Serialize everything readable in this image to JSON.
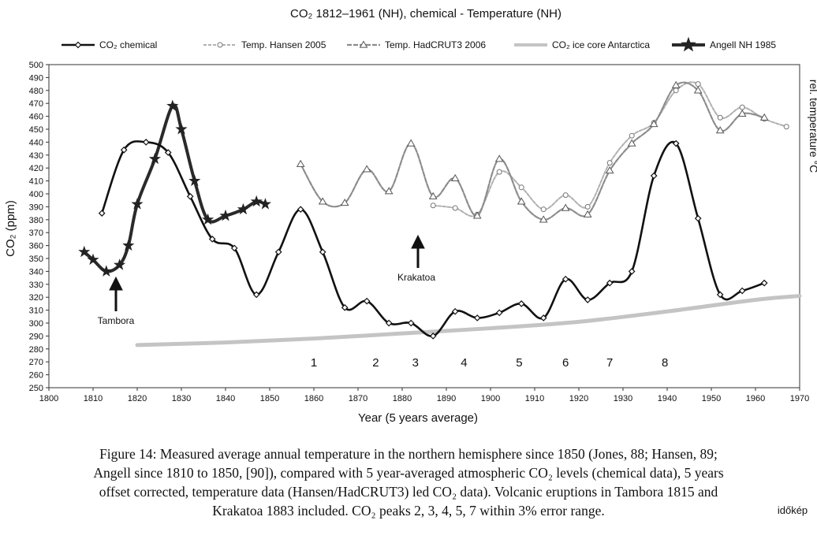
{
  "chart_data": {
    "type": "line",
    "title": "CO₂ 1812–1961 (NH), chemical - Temperature (NH)",
    "x_label": "Year (5 years average)",
    "y_label": "CO₂ (ppm)",
    "y2_label": "rel. temperature °C",
    "xlim": [
      1800,
      1970
    ],
    "ylim": [
      250,
      500
    ],
    "xticks": [
      1800,
      1810,
      1820,
      1830,
      1840,
      1850,
      1860,
      1870,
      1880,
      1890,
      1900,
      1910,
      1920,
      1930,
      1940,
      1950,
      1960,
      1970
    ],
    "yticks": [
      250,
      260,
      270,
      280,
      290,
      300,
      310,
      320,
      330,
      340,
      350,
      360,
      370,
      380,
      390,
      400,
      410,
      420,
      430,
      440,
      450,
      460,
      470,
      480,
      490,
      500
    ],
    "grid": false,
    "series": [
      {
        "name": "CO₂ chemical",
        "color": "#111111",
        "marker": "diamond",
        "x": [
          1812,
          1817,
          1822,
          1827,
          1832,
          1837,
          1842,
          1847,
          1852,
          1857,
          1862,
          1867,
          1872,
          1877,
          1882,
          1887,
          1892,
          1897,
          1902,
          1907,
          1912,
          1917,
          1922,
          1927,
          1932,
          1937,
          1942,
          1947,
          1952,
          1957,
          1962
        ],
        "values": [
          385,
          434,
          440,
          432,
          398,
          365,
          358,
          322,
          355,
          388,
          355,
          312,
          317,
          300,
          300,
          290,
          309,
          304,
          308,
          315,
          304,
          334,
          318,
          331,
          340,
          414,
          439,
          381,
          322,
          325,
          331
        ]
      },
      {
        "name": "Temp. Hansen 2005",
        "color": "#b0b0b0",
        "marker": "circle",
        "x": [
          1887,
          1892,
          1897,
          1902,
          1907,
          1912,
          1917,
          1922,
          1927,
          1932,
          1937,
          1942,
          1947,
          1952,
          1957,
          1962,
          1967
        ],
        "values": [
          391,
          389,
          384,
          417,
          405,
          388,
          399,
          390,
          424,
          445,
          455,
          480,
          485,
          459,
          467,
          458,
          452
        ]
      },
      {
        "name": "Temp. HadCRUT3 2006",
        "color": "#8c8c8c",
        "marker": "triangle",
        "x": [
          1857,
          1862,
          1867,
          1872,
          1877,
          1882,
          1887,
          1892,
          1897,
          1902,
          1907,
          1912,
          1917,
          1922,
          1927,
          1932,
          1937,
          1942,
          1947,
          1952,
          1957,
          1962
        ],
        "values": [
          423,
          394,
          393,
          419,
          402,
          439,
          398,
          412,
          383,
          427,
          394,
          380,
          389,
          384,
          418,
          439,
          454,
          484,
          480,
          449,
          462,
          459
        ]
      },
      {
        "name": "CO₂ ice core Antarctica",
        "color": "#c4c4c4",
        "marker": "none",
        "x": [
          1820,
          1840,
          1860,
          1880,
          1900,
          1920,
          1940,
          1960,
          1970
        ],
        "values": [
          283,
          285,
          288,
          292,
          296,
          301,
          309,
          318,
          321
        ]
      },
      {
        "name": "Angell NH 1985",
        "color": "#2a2a2a",
        "marker": "star",
        "x": [
          1808,
          1810,
          1813,
          1816,
          1818,
          1820,
          1824,
          1828,
          1830,
          1833,
          1836,
          1840,
          1844,
          1847,
          1849
        ],
        "values": [
          355,
          349,
          340,
          345,
          360,
          392,
          427,
          468,
          450,
          410,
          380,
          383,
          388,
          394,
          392
        ]
      }
    ],
    "annotations": [
      "Tambora",
      "Krakatoa",
      "1",
      "2",
      "3",
      "4",
      "5",
      "6",
      "7",
      "8"
    ],
    "caption": [
      "Figure 14: Measured average annual temperature in the northern hemisphere since 1850 (Jones, 88; Hansen, 89;",
      "Angell since 1810 to 1850, [90]), compared with 5 year-averaged atmospheric CO₂ levels (chemical data), 5 years",
      "offset corrected, temperature data (Hansen/HadCRUT3) led CO₂ data). Volcanic eruptions in Tambora 1815 and",
      "Krakatoa 1883 included. CO₂ peaks 2, 3, 4, 5, 7 within 3% error range."
    ],
    "watermark": "időkép"
  }
}
